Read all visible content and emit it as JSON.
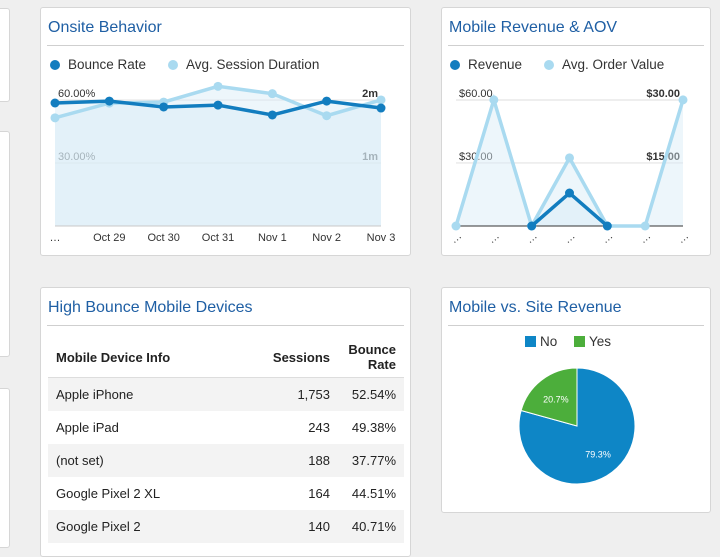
{
  "onsite_behavior": {
    "type": "line",
    "title": "Onsite Behavior",
    "categories": [
      "…",
      "Oct 29",
      "Oct 30",
      "Oct 31",
      "Nov 1",
      "Nov 2",
      "Nov 3"
    ],
    "series": [
      {
        "name": "Bounce Rate",
        "color": "#127dbf",
        "values": [
          58.6,
          59.5,
          56.7,
          57.6,
          52.9,
          59.5,
          56.2
        ]
      },
      {
        "name": "Avg. Session Duration",
        "color": "#a9daf0",
        "axis": "y2",
        "values": [
          103,
          117,
          118,
          133,
          126,
          105,
          120
        ]
      }
    ],
    "ylim": [
      0,
      66.7
    ],
    "yticks": [
      {
        "value": 30,
        "label": "30.00%"
      },
      {
        "value": 60,
        "label": "60.00%"
      }
    ],
    "y2lim": [
      0,
      133.3
    ],
    "y2ticks": [
      {
        "value": 60,
        "label": "1m"
      },
      {
        "value": 120,
        "label": "2m"
      }
    ]
  },
  "mobile_revenue": {
    "type": "line",
    "title": "Mobile Revenue & AOV",
    "categories": [
      "…",
      "…",
      "…",
      "…",
      "…",
      "…",
      "…"
    ],
    "series": [
      {
        "name": "Revenue",
        "color": "#127dbf",
        "values": [
          null,
          null,
          0,
          15.7,
          0,
          null,
          null
        ]
      },
      {
        "name": "Avg. Order Value",
        "color": "#a9daf0",
        "axis": "y2",
        "values": [
          0,
          30,
          0,
          16.2,
          0,
          0,
          30
        ]
      }
    ],
    "ylim": [
      0,
      66.7
    ],
    "yticks": [
      {
        "value": 30,
        "label": "$30.00"
      },
      {
        "value": 60,
        "label": "$60.00"
      }
    ],
    "y2lim": [
      0,
      33.3
    ],
    "y2ticks": [
      {
        "value": 15,
        "label": "$15.00"
      },
      {
        "value": 30,
        "label": "$30.00"
      }
    ]
  },
  "high_bounce": {
    "title": "High Bounce Mobile Devices",
    "columns": [
      "Mobile Device Info",
      "Sessions",
      "Bounce Rate"
    ],
    "rows": [
      [
        "Apple iPhone",
        "1,753",
        "52.54%"
      ],
      [
        "Apple iPad",
        "243",
        "49.38%"
      ],
      [
        "(not set)",
        "188",
        "37.77%"
      ],
      [
        "Google Pixel 2 XL",
        "164",
        "44.51%"
      ],
      [
        "Google Pixel 2",
        "140",
        "40.71%"
      ]
    ]
  },
  "mobile_vs_site": {
    "type": "pie",
    "title": "Mobile vs. Site Revenue",
    "categories": [
      "No",
      "Yes"
    ],
    "values": [
      79.3,
      20.7
    ],
    "value_labels": [
      "79.3%",
      "20.7%"
    ],
    "colors": [
      "#0e86c6",
      "#4cae3b"
    ]
  }
}
